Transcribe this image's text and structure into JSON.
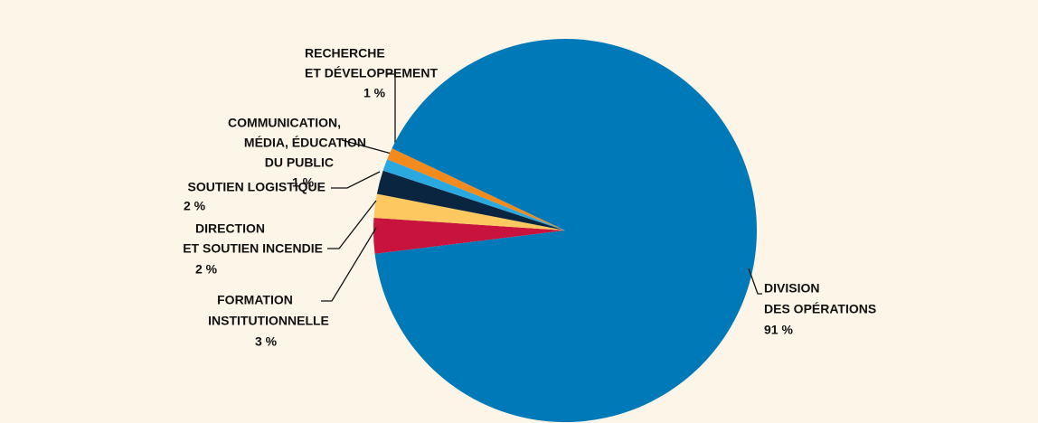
{
  "chart_data": {
    "type": "pie",
    "categories": [
      [
        "FORMATION",
        "INSTITUTIONNELLE"
      ],
      [
        "DIRECTION",
        "ET SOUTIEN INCENDIE"
      ],
      [
        "SOUTIEN LOGISTIQUE"
      ],
      [
        "COMMUNICATION,",
        "MÉDIA, ÉDUCATION",
        "DU PUBLIC"
      ],
      [
        "RECHERCHE",
        "ET DÉVELOPPEMENT"
      ],
      [
        "DIVISION",
        "DES OPÉRATIONS"
      ]
    ],
    "values": [
      3,
      2,
      2,
      1,
      1,
      91
    ],
    "value_labels": [
      "3 %",
      "2 %",
      "2 %",
      "1 %",
      "1 %",
      "91 %"
    ],
    "colors": [
      "#c8133f",
      "#fcc85f",
      "#0a2540",
      "#2aa9e0",
      "#f28a1e",
      "#0079b8"
    ]
  }
}
